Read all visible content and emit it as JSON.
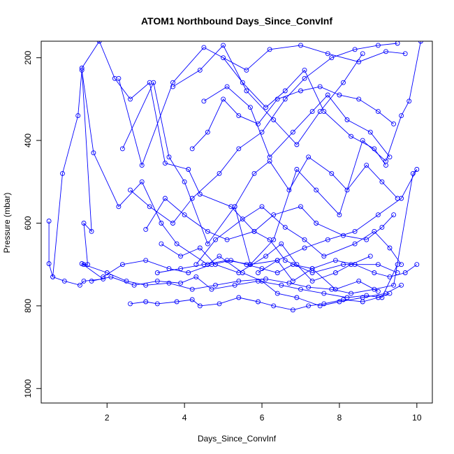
{
  "chart_data": {
    "type": "line",
    "title": "ATOM1 Northbound Days_Since_ConvInf",
    "xlabel": "Days_Since_ConvInf",
    "ylabel": "Pressure (mbar)",
    "xlim": [
      0.3,
      10.4
    ],
    "ylim": [
      1035,
      160
    ],
    "y_reversed": true,
    "x_ticks": [
      2,
      4,
      6,
      8,
      10
    ],
    "y_ticks": [
      200,
      400,
      600,
      800,
      1000
    ],
    "grid": false,
    "legend": "none",
    "line_color": "#0000ff",
    "marker": "open-circle",
    "series": [
      {
        "x": [
          0.5,
          0.5,
          0.6,
          0.9,
          1.3,
          1.4,
          1.9,
          1.35,
          1.5,
          1.4,
          1.6,
          1.35,
          1.8,
          2.2,
          2.6,
          3.1,
          3.5,
          4.1,
          4.4,
          5.2,
          5.8,
          6.2,
          6.6,
          7.3,
          8.1,
          9.0,
          9.5
        ],
        "y": [
          595,
          698,
          730,
          740,
          750,
          740,
          735,
          698,
          700,
          600,
          620,
          225,
          160,
          250,
          300,
          260,
          455,
          470,
          530,
          560,
          620,
          640,
          690,
          720,
          700,
          700,
          720
        ]
      },
      {
        "x": [
          0.6,
          0.85,
          1.25,
          1.35,
          1.65,
          2.3,
          2.9,
          3.4,
          3.8,
          4.6,
          4.9,
          5.5,
          6.0,
          6.4,
          6.9,
          7.5,
          8.0,
          8.6,
          9.2,
          9.6
        ],
        "y": [
          730,
          480,
          340,
          230,
          430,
          560,
          500,
          600,
          650,
          700,
          680,
          720,
          740,
          770,
          780,
          800,
          790,
          780,
          770,
          750
        ]
      },
      {
        "x": [
          1.4,
          2.0,
          2.5,
          3.0,
          3.6,
          4.2,
          4.8,
          5.4,
          6.1,
          6.7,
          7.2,
          7.8,
          8.3,
          8.9,
          9.4,
          9.9,
          10.0,
          9.6,
          9.0,
          8.4,
          7.7,
          7.1,
          6.4,
          5.7,
          5.1,
          4.5,
          3.9,
          3.3
        ],
        "y": [
          700,
          720,
          740,
          750,
          745,
          760,
          750,
          740,
          735,
          745,
          755,
          760,
          770,
          760,
          750,
          480,
          470,
          540,
          580,
          620,
          640,
          660,
          690,
          700,
          690,
          700,
          710,
          720
        ]
      },
      {
        "x": [
          1.6,
          2.1,
          2.7,
          3.3,
          3.9,
          4.3,
          4.7,
          5.3,
          5.9,
          6.5,
          7.0,
          7.6,
          8.2,
          8.7,
          9.1,
          9.5
        ],
        "y": [
          740,
          730,
          750,
          740,
          745,
          730,
          760,
          750,
          740,
          750,
          760,
          770,
          780,
          775,
          780,
          700
        ]
      },
      {
        "x": [
          2.6,
          3.0,
          3.3,
          3.8,
          4.2,
          4.4,
          4.9,
          5.4,
          5.9,
          6.3,
          6.8,
          7.2,
          7.6,
          8.1,
          8.6,
          9.0,
          9.3
        ],
        "y": [
          795,
          790,
          795,
          790,
          785,
          800,
          795,
          780,
          790,
          800,
          810,
          800,
          795,
          785,
          790,
          780,
          770
        ]
      },
      {
        "x": [
          1.9,
          2.4,
          3.0,
          3.6,
          4.1,
          4.7,
          5.2,
          5.6,
          6.0,
          6.4,
          6.8,
          7.3,
          7.9,
          8.4,
          8.9,
          9.3,
          9.7,
          10.0
        ],
        "y": [
          730,
          700,
          690,
          710,
          720,
          700,
          690,
          700,
          710,
          720,
          700,
          710,
          690,
          700,
          720,
          730,
          720,
          700
        ]
      },
      {
        "x": [
          2.3,
          2.9,
          3.7,
          4.5,
          5.6,
          6.2,
          7.0,
          7.7,
          8.5,
          9.2,
          9.7
        ],
        "y": [
          250,
          460,
          260,
          175,
          230,
          180,
          170,
          190,
          210,
          185,
          190
        ]
      },
      {
        "x": [
          2.4,
          3.2,
          3.6,
          4.0,
          4.6,
          5.3,
          5.7,
          6.3,
          6.9,
          7.4,
          8.0,
          8.6,
          9.2,
          9.6,
          9.8,
          10.1
        ],
        "y": [
          420,
          260,
          440,
          500,
          650,
          560,
          700,
          640,
          470,
          520,
          580,
          400,
          450,
          340,
          305,
          160
        ]
      },
      {
        "x": [
          2.6,
          3.1,
          3.7,
          4.2,
          4.9,
          5.4,
          6.0,
          6.6,
          7.1,
          7.8,
          8.4,
          9.0,
          9.5
        ],
        "y": [
          520,
          560,
          600,
          540,
          480,
          420,
          380,
          300,
          250,
          200,
          180,
          170,
          165
        ]
      },
      {
        "x": [
          3.0,
          3.5,
          4.0,
          4.6,
          5.1,
          5.8,
          6.3,
          7.0,
          7.4,
          8.1,
          8.7,
          9.1,
          9.4
        ],
        "y": [
          615,
          540,
          580,
          620,
          640,
          620,
          580,
          560,
          600,
          630,
          640,
          610,
          580
        ]
      },
      {
        "x": [
          3.4,
          3.9,
          4.4,
          4.8,
          5.4,
          6.1,
          6.5,
          6.9,
          7.3,
          7.9,
          8.3,
          8.8
        ],
        "y": [
          650,
          680,
          660,
          700,
          720,
          680,
          650,
          700,
          740,
          720,
          700,
          680
        ]
      },
      {
        "x": [
          4.2,
          4.6,
          5.0,
          5.4,
          5.9,
          6.4,
          7.0,
          7.5,
          8.0,
          8.5,
          9.0,
          9.4
        ],
        "y": [
          420,
          380,
          300,
          340,
          360,
          300,
          280,
          270,
          290,
          300,
          330,
          360
        ]
      },
      {
        "x": [
          4.5,
          5.1,
          5.7,
          6.2,
          6.8,
          7.3,
          7.7,
          8.2,
          8.8,
          9.3
        ],
        "y": [
          305,
          270,
          320,
          440,
          380,
          330,
          290,
          350,
          380,
          440
        ]
      },
      {
        "x": [
          5.0,
          5.5,
          6.1,
          6.6,
          7.1,
          7.6,
          8.3,
          8.9,
          9.2
        ],
        "y": [
          200,
          260,
          320,
          280,
          230,
          330,
          390,
          420,
          460
        ]
      },
      {
        "x": [
          5.3,
          5.8,
          6.2,
          6.7,
          7.2,
          7.8,
          8.2,
          8.7,
          9.1,
          9.5
        ],
        "y": [
          560,
          480,
          450,
          520,
          440,
          480,
          520,
          460,
          500,
          540
        ]
      },
      {
        "x": [
          4.3,
          4.8,
          5.5,
          6.0,
          6.6,
          7.1,
          7.6,
          8.4,
          8.9,
          9.3,
          9.6
        ],
        "y": [
          700,
          640,
          590,
          560,
          610,
          640,
          680,
          650,
          620,
          660,
          700
        ]
      },
      {
        "x": [
          3.7,
          4.4,
          5.0,
          5.6,
          6.3,
          6.9,
          7.5,
          8.1,
          8.6
        ],
        "y": [
          270,
          230,
          170,
          280,
          350,
          410,
          330,
          260,
          190
        ]
      },
      {
        "x": [
          5.9,
          6.4,
          6.8,
          7.3,
          7.9,
          8.5,
          9.0
        ],
        "y": [
          720,
          690,
          740,
          710,
          760,
          740,
          765
        ]
      }
    ]
  }
}
